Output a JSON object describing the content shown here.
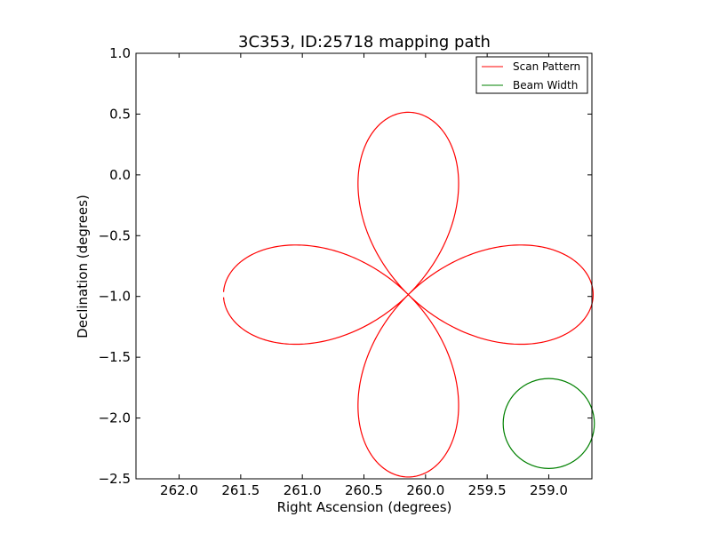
{
  "chart_data": {
    "type": "line",
    "title": "3C353, ID:25718 mapping path",
    "xlabel": "Right Ascension (degrees)",
    "ylabel": "Declination (degrees)",
    "xlim": [
      262.35,
      258.65
    ],
    "ylim": [
      -2.5,
      1.0
    ],
    "x_ticks": [
      262.0,
      261.5,
      261.0,
      260.5,
      260.0,
      259.5,
      259.0
    ],
    "x_tick_labels": [
      "262.0",
      "261.5",
      "261.0",
      "260.5",
      "260.0",
      "259.5",
      "259.0"
    ],
    "y_ticks": [
      1.0,
      0.5,
      0.0,
      -0.5,
      -1.0,
      -1.5,
      -2.0,
      -2.5
    ],
    "y_tick_labels": [
      "1.0",
      "0.5",
      "0.0",
      "−0.5",
      "−1.0",
      "−1.5",
      "−2.0",
      "−2.5"
    ],
    "grid": false,
    "legend_position": "top-right",
    "series": [
      {
        "name": "Scan Pattern",
        "color": "#ff0000",
        "shape": "four-petal rose",
        "center": [
          260.14,
          -0.985
        ],
        "petal_extent": 1.5,
        "start_point": [
          261.62,
          -0.96
        ],
        "end_point": [
          261.62,
          -1.04
        ]
      },
      {
        "name": "Beam Width",
        "color": "#008000",
        "shape": "circle",
        "center": [
          259.0,
          -2.045
        ],
        "radius": 0.37
      }
    ]
  }
}
